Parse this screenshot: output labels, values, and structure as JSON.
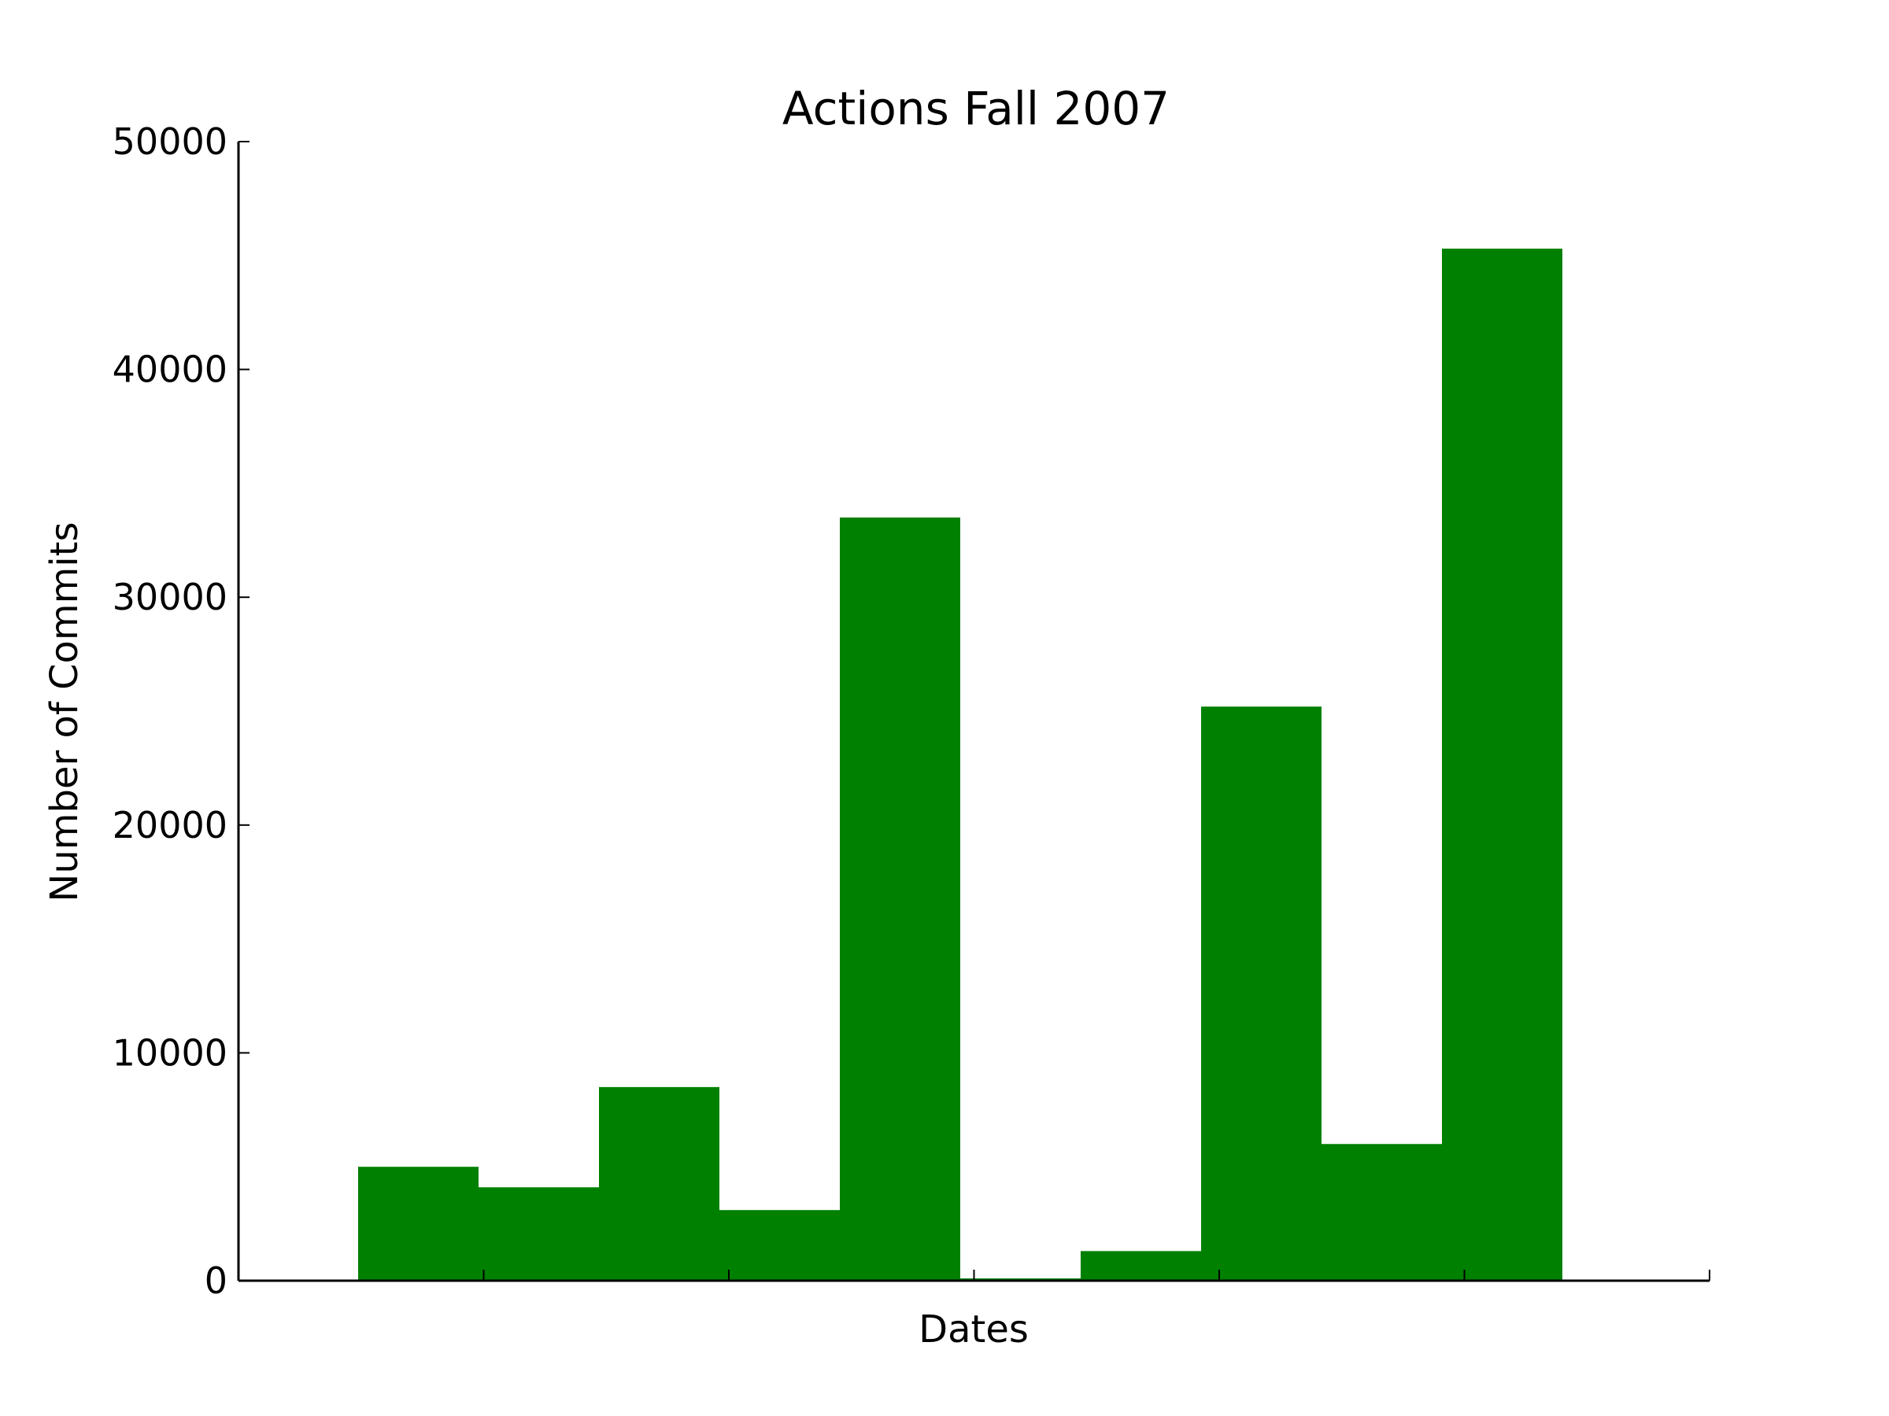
{
  "chart_data": {
    "type": "bar",
    "title": "Actions Fall 2007",
    "xlabel": "Dates",
    "ylabel": "Number of Commits",
    "ylim": [
      0,
      50000
    ],
    "yticks": [
      "0",
      "10000",
      "20000",
      "30000",
      "40000",
      "50000"
    ],
    "x_tick_count": 6,
    "grid": false,
    "bar_color": "#008000",
    "values": [
      5000,
      4100,
      8500,
      3100,
      33500,
      100,
      1300,
      25200,
      6000,
      45300
    ]
  }
}
